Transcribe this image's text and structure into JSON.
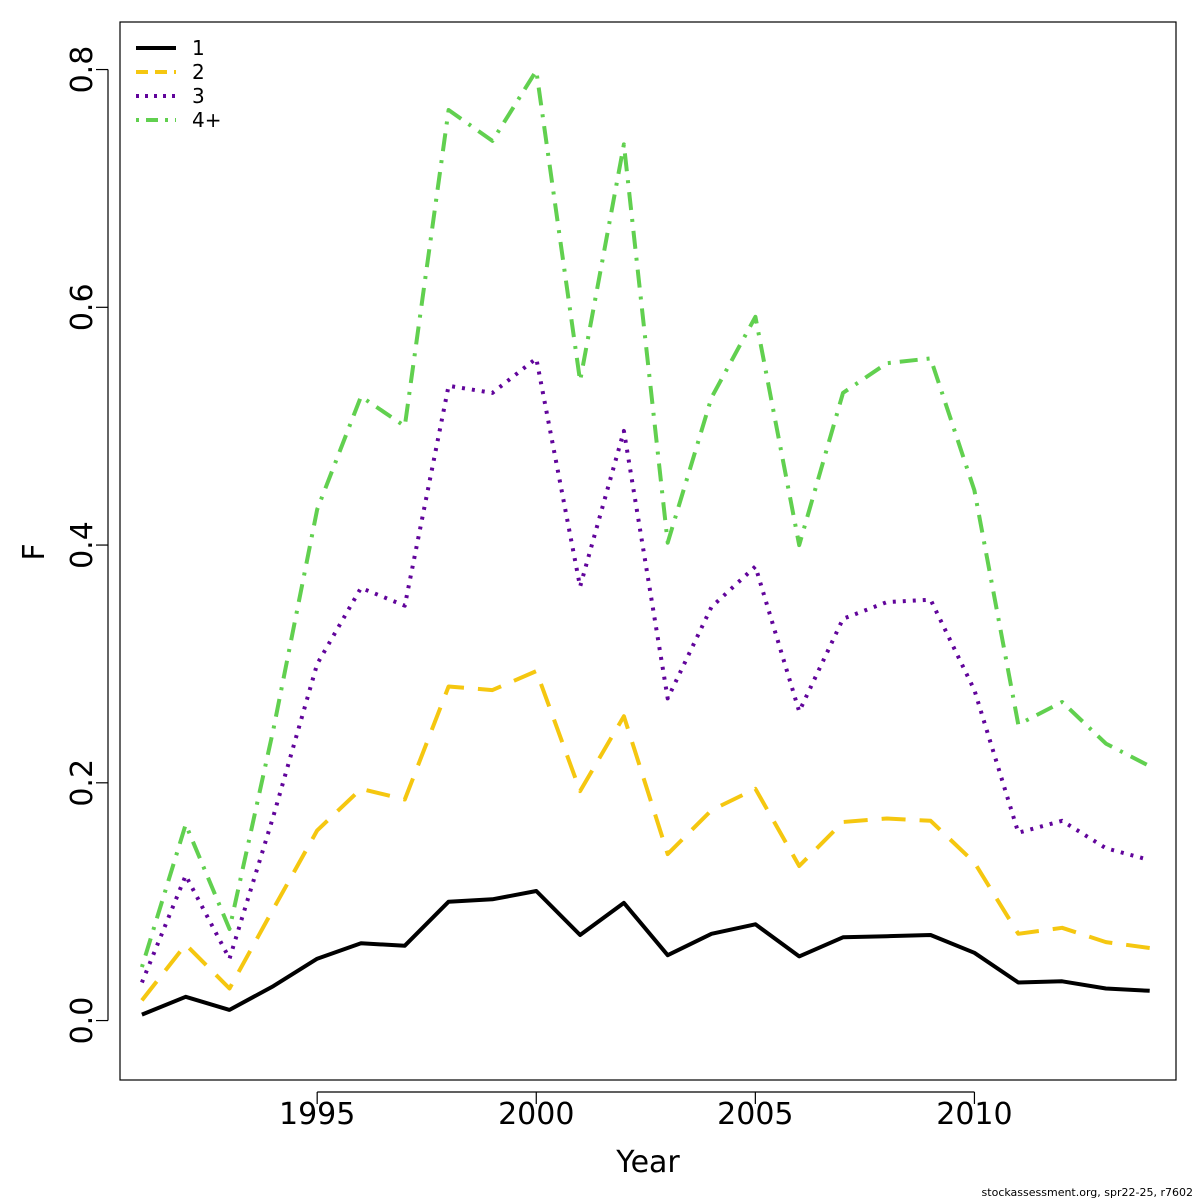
{
  "chart_data": {
    "type": "line",
    "title": "",
    "xlabel": "Year",
    "ylabel": "F",
    "xlim": [
      1990.5,
      2014.6
    ],
    "ylim": [
      -0.05,
      0.84
    ],
    "xticks": [
      1995,
      2000,
      2005,
      2010
    ],
    "yticks": [
      0.0,
      0.2,
      0.4,
      0.6,
      0.8
    ],
    "ytick_labels": [
      "0.0",
      "0.2",
      "0.4",
      "0.6",
      "0.8"
    ],
    "legend_placement": "top-left",
    "grid": false,
    "x": [
      1991,
      1992,
      1993,
      1994,
      1995,
      1996,
      1997,
      1998,
      1999,
      2000,
      2001,
      2002,
      2003,
      2004,
      2005,
      2006,
      2007,
      2008,
      2009,
      2010,
      2011,
      2012,
      2013,
      2014
    ],
    "series": [
      {
        "name": "1",
        "color": "#000000",
        "dash": "solid",
        "values": [
          0.005,
          0.02,
          0.009,
          0.029,
          0.052,
          0.065,
          0.063,
          0.1,
          0.102,
          0.109,
          0.072,
          0.099,
          0.055,
          0.073,
          0.081,
          0.054,
          0.07,
          0.071,
          0.072,
          0.057,
          0.032,
          0.033,
          0.027,
          0.025
        ]
      },
      {
        "name": "2",
        "color": "#f5c710",
        "dash": "dashed",
        "values": [
          0.017,
          0.064,
          0.027,
          0.094,
          0.16,
          0.195,
          0.186,
          0.281,
          0.278,
          0.294,
          0.193,
          0.256,
          0.14,
          0.177,
          0.195,
          0.13,
          0.167,
          0.17,
          0.168,
          0.133,
          0.073,
          0.078,
          0.066,
          0.061
        ]
      },
      {
        "name": "3",
        "color": "#61049b",
        "dash": "dotted",
        "values": [
          0.032,
          0.122,
          0.052,
          0.172,
          0.3,
          0.364,
          0.349,
          0.534,
          0.528,
          0.557,
          0.365,
          0.496,
          0.271,
          0.348,
          0.382,
          0.26,
          0.338,
          0.352,
          0.354,
          0.278,
          0.158,
          0.168,
          0.145,
          0.135
        ]
      },
      {
        "name": "4+",
        "color": "#61d04f",
        "dash": "dotdash",
        "values": [
          0.045,
          0.165,
          0.077,
          0.245,
          0.43,
          0.525,
          0.5,
          0.766,
          0.74,
          0.799,
          0.538,
          0.737,
          0.402,
          0.524,
          0.592,
          0.4,
          0.528,
          0.553,
          0.557,
          0.446,
          0.249,
          0.268,
          0.233,
          0.214
        ]
      }
    ]
  },
  "footer": {
    "note": "stockassessment.org, spr22-25, r7602"
  }
}
